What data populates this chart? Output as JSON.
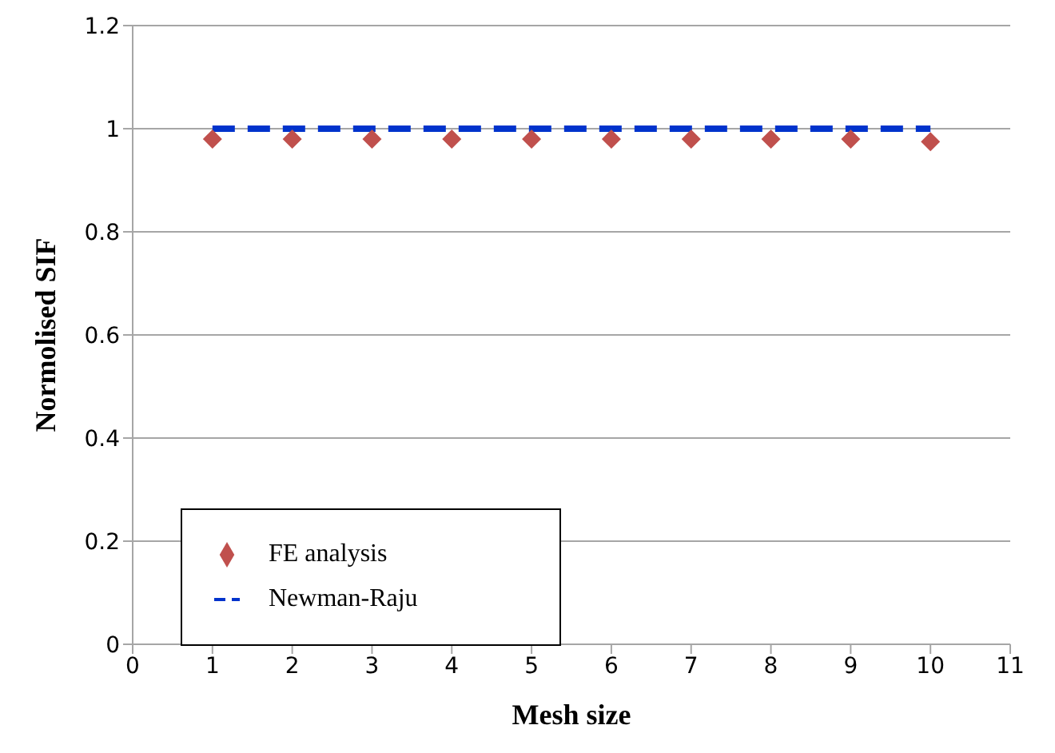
{
  "chart_data": {
    "type": "scatter",
    "xlabel": "Mesh size",
    "ylabel": "Normolised SIF",
    "xlim": [
      0,
      11
    ],
    "xticks": [
      0,
      1,
      2,
      3,
      4,
      5,
      6,
      7,
      8,
      9,
      10,
      11
    ],
    "ylim": [
      0,
      1.2
    ],
    "yticks": [
      0,
      0.2,
      0.4,
      0.6,
      0.8,
      1,
      1.2
    ],
    "grid": "y",
    "legend": "bottom left",
    "series": [
      {
        "name": "FE analysis",
        "type": "scatter",
        "marker": "diamond",
        "color": "#c0504d",
        "x": [
          1,
          2,
          3,
          4,
          5,
          6,
          7,
          8,
          9,
          10
        ],
        "values": [
          0.98,
          0.98,
          0.98,
          0.98,
          0.98,
          0.98,
          0.98,
          0.98,
          0.98,
          0.975
        ]
      },
      {
        "name": "Newman-Raju",
        "type": "line",
        "marker": "none",
        "line_style": "dashed",
        "color": "#0033cc",
        "x": [
          1,
          10
        ],
        "values": [
          1,
          1
        ]
      }
    ]
  }
}
